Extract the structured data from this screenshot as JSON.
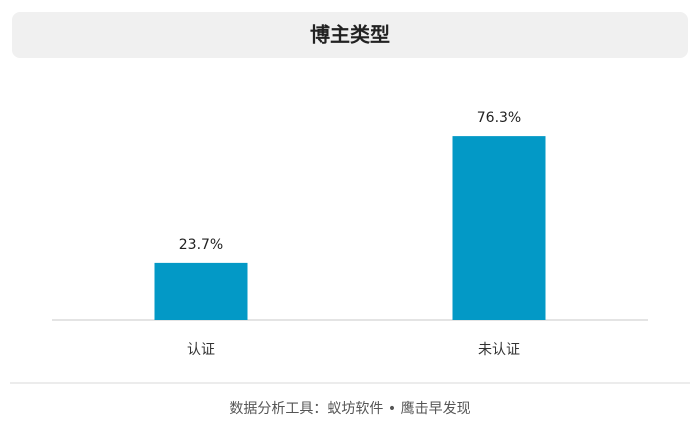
{
  "chart_data": {
    "type": "bar",
    "title": "博主类型",
    "categories": [
      "认证",
      "未认证"
    ],
    "values": [
      23.7,
      76.3
    ],
    "value_labels": [
      "23.7%",
      "76.3%"
    ],
    "color": "#0399c6"
  },
  "footer": "数据分析工具：蚁坊软件 • 鹰击早发现"
}
